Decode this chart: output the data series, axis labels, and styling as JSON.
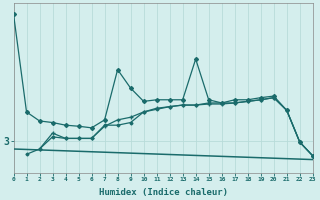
{
  "xlabel": "Humidex (Indice chaleur)",
  "bg_color": "#d4eeed",
  "grid_color": "#b8dbd9",
  "line_color": "#1a6b6b",
  "xlim": [
    0,
    23
  ],
  "ylim": [
    2.4,
    5.6
  ],
  "ytick_labels": [
    "3"
  ],
  "ytick_positions": [
    3.0
  ],
  "line1_x": [
    0,
    1,
    2,
    3,
    4,
    5,
    6,
    7,
    8,
    9,
    10,
    11,
    12,
    13,
    14,
    15,
    16,
    17,
    18,
    19,
    20,
    21,
    22,
    23
  ],
  "line1_y": [
    5.4,
    3.55,
    3.38,
    3.35,
    3.3,
    3.28,
    3.25,
    3.4,
    4.35,
    4.0,
    3.75,
    3.78,
    3.78,
    3.78,
    4.55,
    3.78,
    3.72,
    3.78,
    3.78,
    3.82,
    3.85,
    3.58,
    2.98,
    2.72
  ],
  "line2_x": [
    2,
    3,
    4,
    5,
    6,
    7,
    8,
    9,
    10,
    11,
    12,
    13,
    14,
    15,
    16,
    17,
    18,
    19,
    20,
    21,
    22,
    23
  ],
  "line2_y": [
    2.85,
    3.15,
    3.05,
    3.05,
    3.05,
    3.28,
    3.4,
    3.45,
    3.55,
    3.62,
    3.65,
    3.68,
    3.68,
    3.7,
    3.7,
    3.72,
    3.75,
    3.78,
    3.82,
    3.58,
    2.98,
    2.72
  ],
  "line3_x": [
    0,
    23
  ],
  "line3_y": [
    2.85,
    2.65
  ],
  "line4_x": [
    1,
    2,
    3,
    4,
    5,
    6,
    7,
    8,
    9,
    10,
    11,
    12,
    13,
    14,
    15,
    16,
    17,
    18,
    19,
    20,
    21,
    22,
    23
  ],
  "line4_y": [
    2.75,
    2.85,
    3.08,
    3.05,
    3.05,
    3.05,
    3.3,
    3.3,
    3.35,
    3.55,
    3.6,
    3.65,
    3.68,
    3.68,
    3.72,
    3.72,
    3.72,
    3.75,
    3.78,
    3.82,
    3.58,
    2.98,
    2.72
  ]
}
